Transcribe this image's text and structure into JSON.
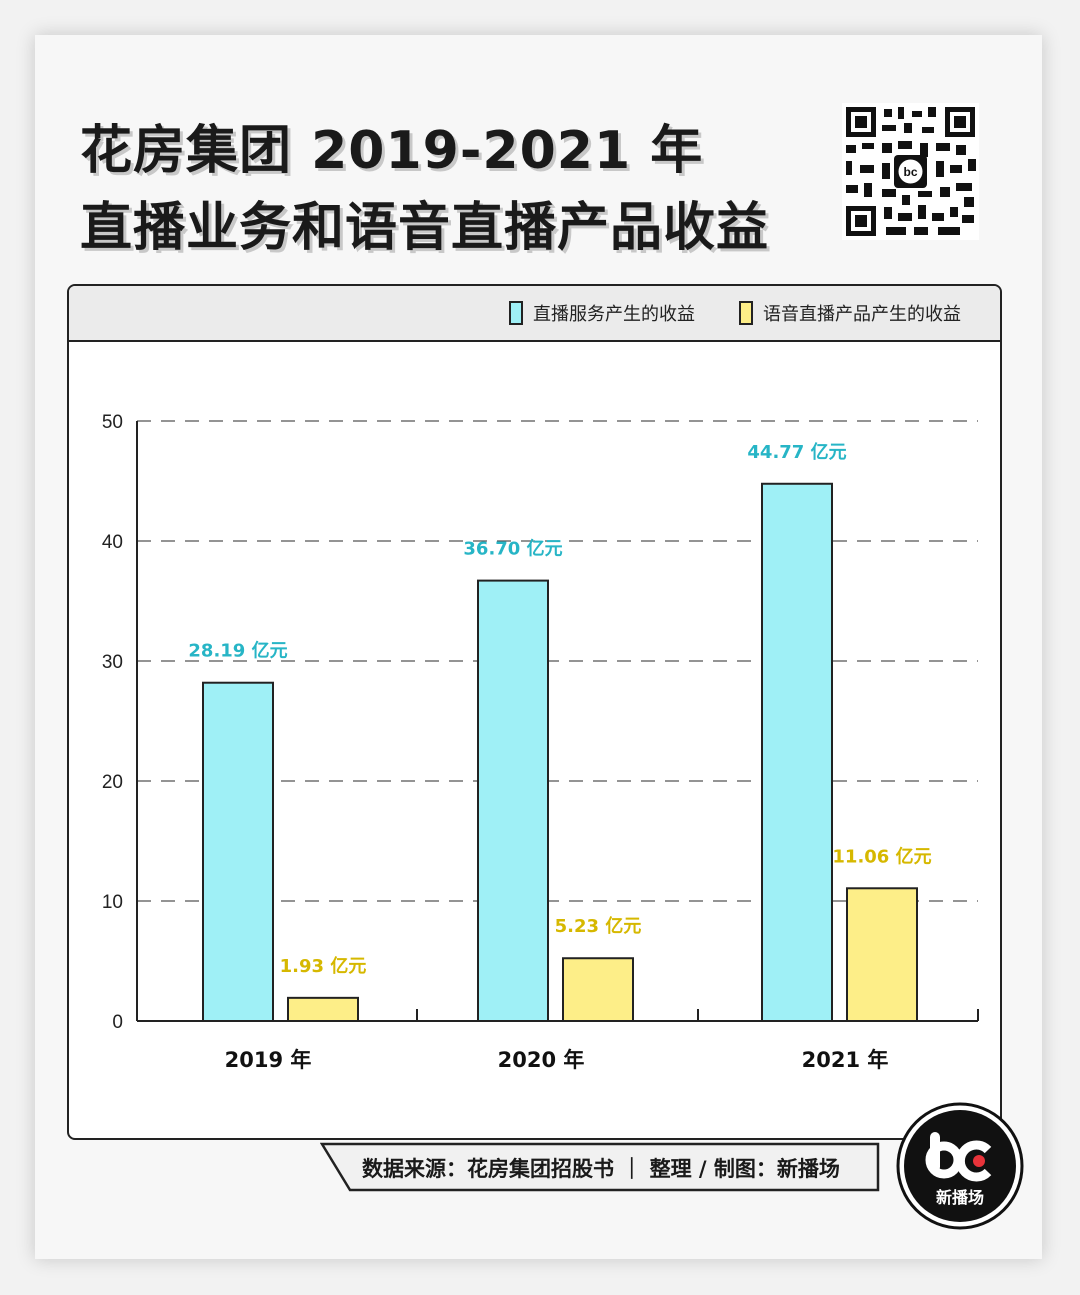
{
  "title": {
    "line1": "花房集团 2019-2021 年",
    "line2": "直播业务和语音直播产品收益"
  },
  "footer": {
    "source": "数据来源：花房集团招股书  ｜  整理 / 制图：新播场"
  },
  "logo": {
    "text": "新播场",
    "icon": "bc-logo-icon"
  },
  "qr": {
    "icon": "qr-code-icon"
  },
  "colors": {
    "series0": "#9ff0f6",
    "series1": "#fdee88",
    "label0": "#27b5c6",
    "label1": "#d6b800"
  },
  "chart_data": {
    "type": "bar",
    "categories": [
      "2019 年",
      "2020 年",
      "2021 年"
    ],
    "series": [
      {
        "name": "直播服务产生的收益",
        "values": [
          28.19,
          36.7,
          44.77
        ],
        "labels": [
          "28.19 亿元",
          "36.70 亿元",
          "44.77 亿元"
        ]
      },
      {
        "name": "语音直播产品产生的收益",
        "values": [
          1.93,
          5.23,
          11.06
        ],
        "labels": [
          "1.93 亿元",
          "5.23 亿元",
          "11.06 亿元"
        ]
      }
    ],
    "yticks": [
      "0",
      "10",
      "20",
      "30",
      "40",
      "50"
    ],
    "ylim": [
      0,
      50
    ],
    "grid": true,
    "legend": "top-right"
  }
}
